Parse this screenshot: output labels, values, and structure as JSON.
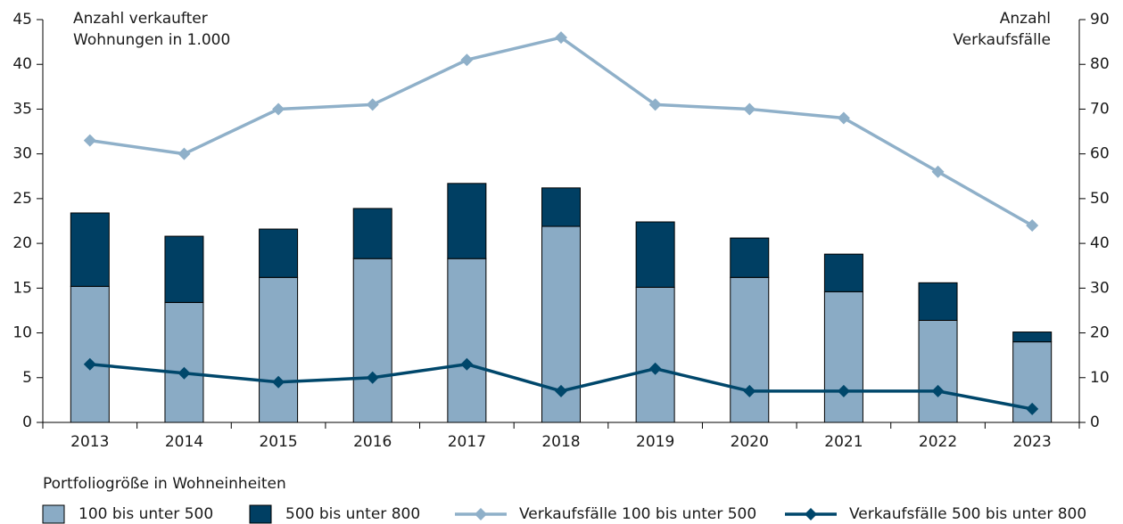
{
  "chart_data": {
    "type": "bar",
    "y_label": [
      "Anzahl verkaufter",
      "Wohnungen in 1.000"
    ],
    "y2_label": [
      "Anzahl",
      "Verkaufsfälle"
    ],
    "legend_title": "Portfoliogröße in Wohneinheiten",
    "categories": [
      "2013",
      "2014",
      "2015",
      "2016",
      "2017",
      "2018",
      "2019",
      "2020",
      "2021",
      "2022",
      "2023"
    ],
    "stacked": true,
    "series": [
      {
        "name": "100 bis unter 500",
        "type": "bar",
        "color": "#8aabc5",
        "values": [
          15.2,
          13.4,
          16.2,
          18.3,
          18.3,
          21.9,
          15.1,
          16.2,
          14.6,
          11.4,
          9.0
        ]
      },
      {
        "name": "500 bis unter 800",
        "type": "bar",
        "color": "#003f63",
        "values": [
          8.2,
          7.4,
          5.4,
          5.6,
          8.4,
          4.3,
          7.3,
          4.4,
          4.2,
          4.2,
          1.1
        ]
      },
      {
        "name": "Verkaufsfälle 100 bis unter 500",
        "type": "line",
        "axis": "y2",
        "color": "#8fb0c9",
        "values": [
          63,
          60,
          70,
          71,
          81,
          86,
          71,
          70,
          68,
          56,
          44
        ]
      },
      {
        "name": "Verkaufsfälle 500 bis unter 800",
        "type": "line",
        "axis": "y2",
        "color": "#00476b",
        "values": [
          13,
          11,
          9,
          10,
          13,
          7,
          12,
          7,
          7,
          7,
          3
        ]
      }
    ],
    "ylim": [
      0,
      45
    ],
    "yticks": [
      0,
      5,
      10,
      15,
      20,
      25,
      30,
      35,
      40,
      45
    ],
    "y2lim": [
      0,
      90
    ],
    "y2ticks": [
      0,
      10,
      20,
      30,
      40,
      50,
      60,
      70,
      80,
      90
    ],
    "legend": "bottom"
  }
}
